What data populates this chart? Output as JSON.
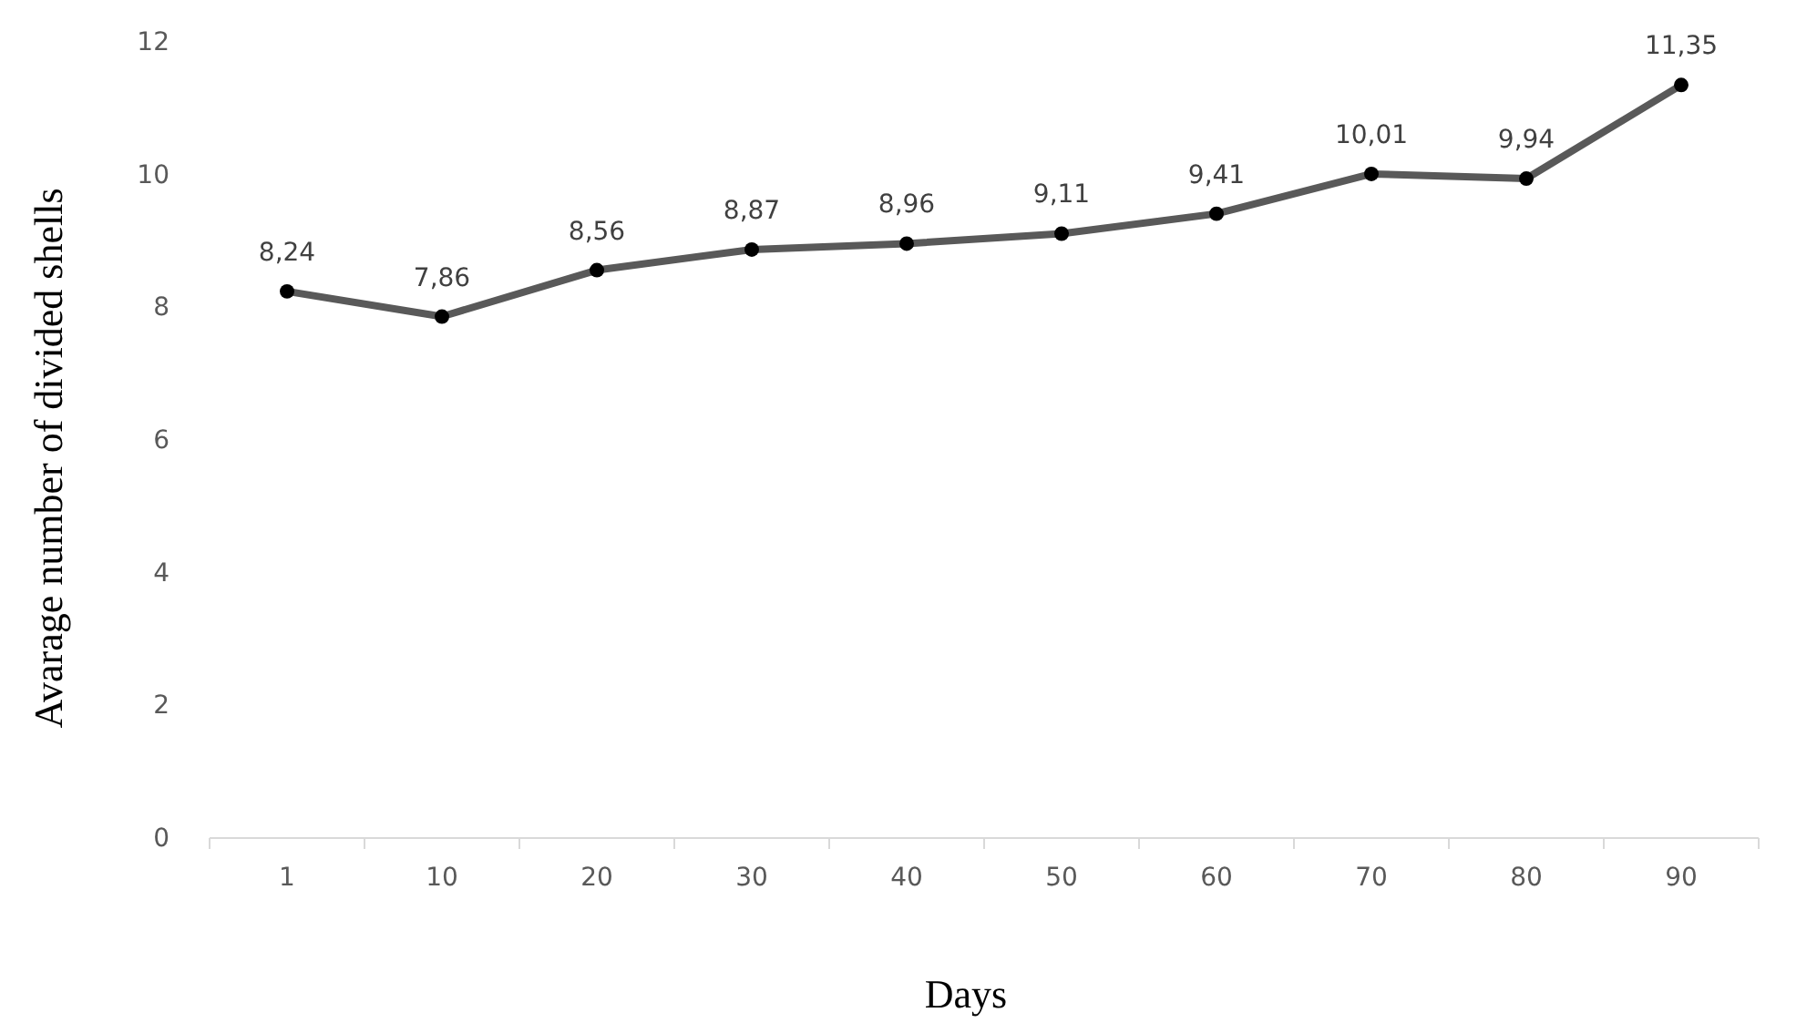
{
  "chart_data": {
    "type": "line",
    "xlabel": "Days",
    "ylabel": "Avarage number of divided shells",
    "categories": [
      "1",
      "10",
      "20",
      "30",
      "40",
      "50",
      "60",
      "70",
      "80",
      "90"
    ],
    "series": [
      {
        "color": "#595959",
        "values": [
          8.24,
          7.86,
          8.56,
          8.87,
          8.96,
          9.11,
          9.41,
          10.01,
          9.94,
          11.35
        ],
        "value_labels": [
          "8,24",
          "7,86",
          "8,56",
          "8,87",
          "8,96",
          "9,11",
          "9,41",
          "10,01",
          "9,94",
          "11,35"
        ]
      }
    ],
    "ylim": [
      0,
      12
    ],
    "yticks": [
      0,
      2,
      4,
      6,
      8,
      10,
      12
    ],
    "marker": "circle",
    "line_style": "solid",
    "grid": false
  }
}
